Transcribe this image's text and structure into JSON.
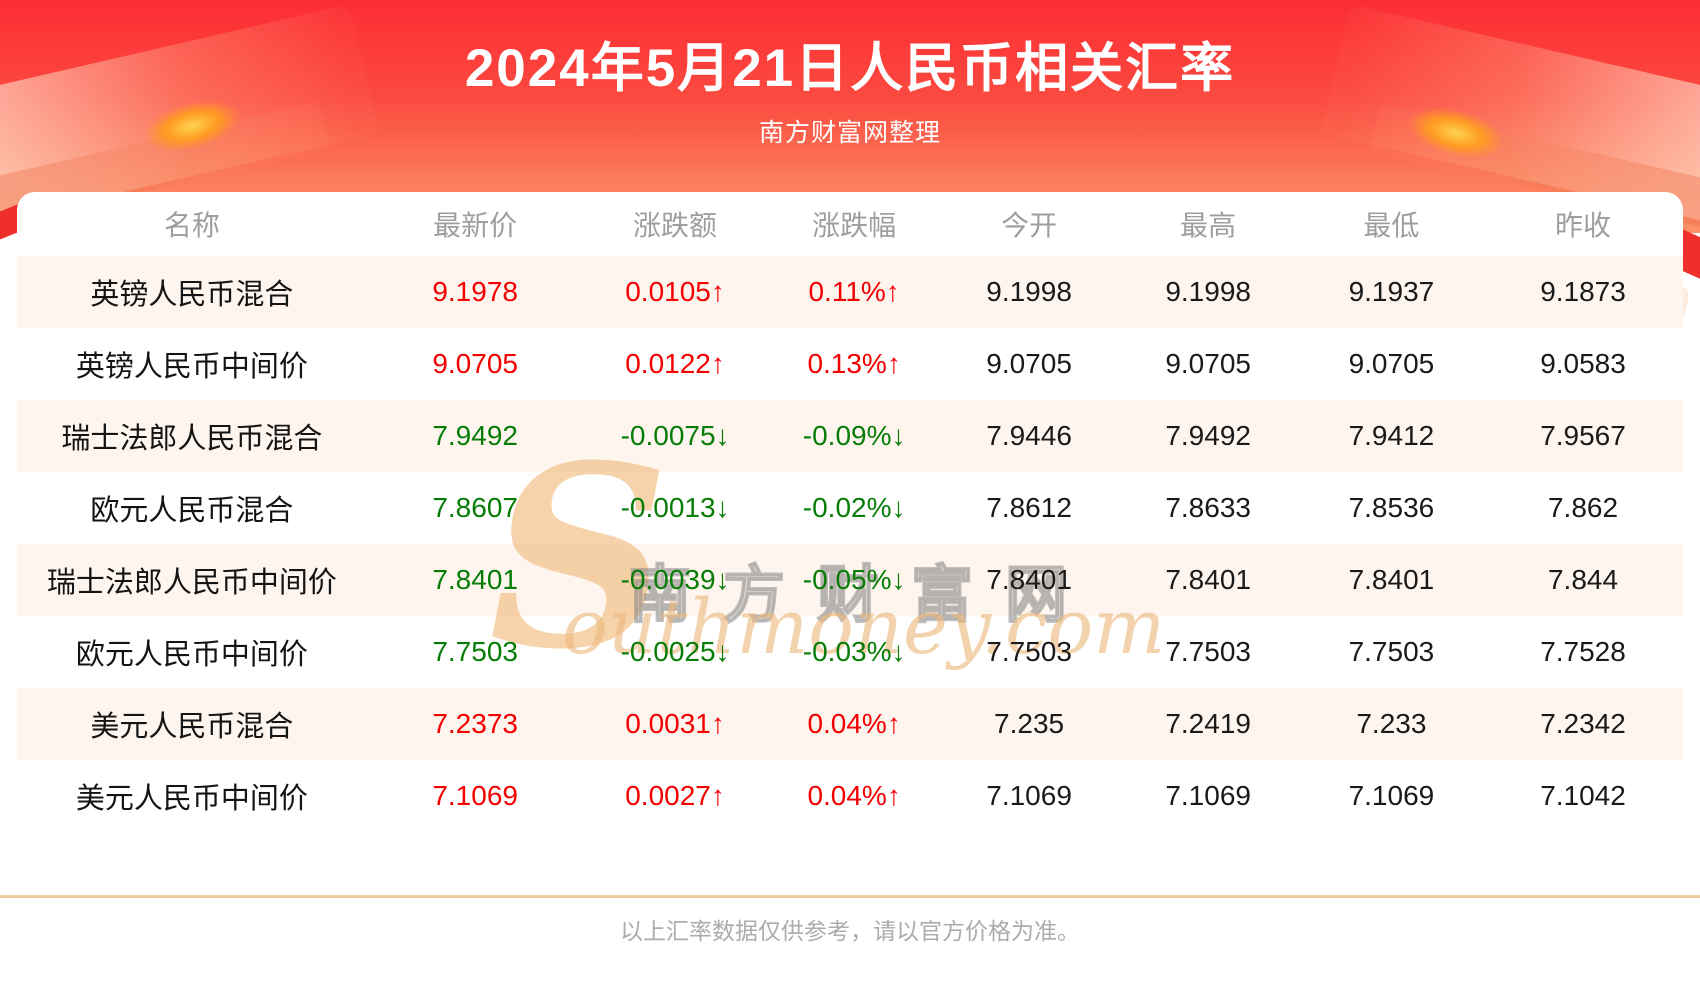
{
  "banner": {
    "title": "2024年5月21日人民币相关汇率",
    "subtitle": "南方财富网整理"
  },
  "chart_data": {
    "type": "table",
    "title": "2024年5月21日人民币相关汇率",
    "columns": [
      "名称",
      "最新价",
      "涨跌额",
      "涨跌幅",
      "今开",
      "最高",
      "最低",
      "昨收"
    ],
    "rows": [
      {
        "name": "英镑人民币混合",
        "latest": "9.1978",
        "change": "0.0105↑",
        "change_pct": "0.11%↑",
        "open": "9.1998",
        "high": "9.1998",
        "low": "9.1937",
        "prev_close": "9.1873",
        "direction": "up"
      },
      {
        "name": "英镑人民币中间价",
        "latest": "9.0705",
        "change": "0.0122↑",
        "change_pct": "0.13%↑",
        "open": "9.0705",
        "high": "9.0705",
        "low": "9.0705",
        "prev_close": "9.0583",
        "direction": "up"
      },
      {
        "name": "瑞士法郎人民币混合",
        "latest": "7.9492",
        "change": "-0.0075↓",
        "change_pct": "-0.09%↓",
        "open": "7.9446",
        "high": "7.9492",
        "low": "7.9412",
        "prev_close": "7.9567",
        "direction": "down"
      },
      {
        "name": "欧元人民币混合",
        "latest": "7.8607",
        "change": "-0.0013↓",
        "change_pct": "-0.02%↓",
        "open": "7.8612",
        "high": "7.8633",
        "low": "7.8536",
        "prev_close": "7.862",
        "direction": "down"
      },
      {
        "name": "瑞士法郎人民币中间价",
        "latest": "7.8401",
        "change": "-0.0039↓",
        "change_pct": "-0.05%↓",
        "open": "7.8401",
        "high": "7.8401",
        "low": "7.8401",
        "prev_close": "7.844",
        "direction": "down"
      },
      {
        "name": "欧元人民币中间价",
        "latest": "7.7503",
        "change": "-0.0025↓",
        "change_pct": "-0.03%↓",
        "open": "7.7503",
        "high": "7.7503",
        "low": "7.7503",
        "prev_close": "7.7528",
        "direction": "down"
      },
      {
        "name": "美元人民币混合",
        "latest": "7.2373",
        "change": "0.0031↑",
        "change_pct": "0.04%↑",
        "open": "7.235",
        "high": "7.2419",
        "low": "7.233",
        "prev_close": "7.2342",
        "direction": "up"
      },
      {
        "name": "美元人民币中间价",
        "latest": "7.1069",
        "change": "0.0027↑",
        "change_pct": "0.04%↑",
        "open": "7.1069",
        "high": "7.1069",
        "low": "7.1069",
        "prev_close": "7.1042",
        "direction": "up"
      }
    ]
  },
  "watermark": {
    "initial": "S",
    "cn": "南方财富网",
    "en": "outhmoney.com"
  },
  "footer": {
    "disclaimer": "以上汇率数据仅供参考，请以官方价格为准。"
  },
  "colors": {
    "up_red": "#f40000",
    "down_green": "#077d07",
    "banner_top": "#fc2d33",
    "banner_bottom": "#fd9166",
    "row_stripe": "#fdf5ee",
    "header_text": "#9e9e9e",
    "divider": "#f3cb9b"
  }
}
